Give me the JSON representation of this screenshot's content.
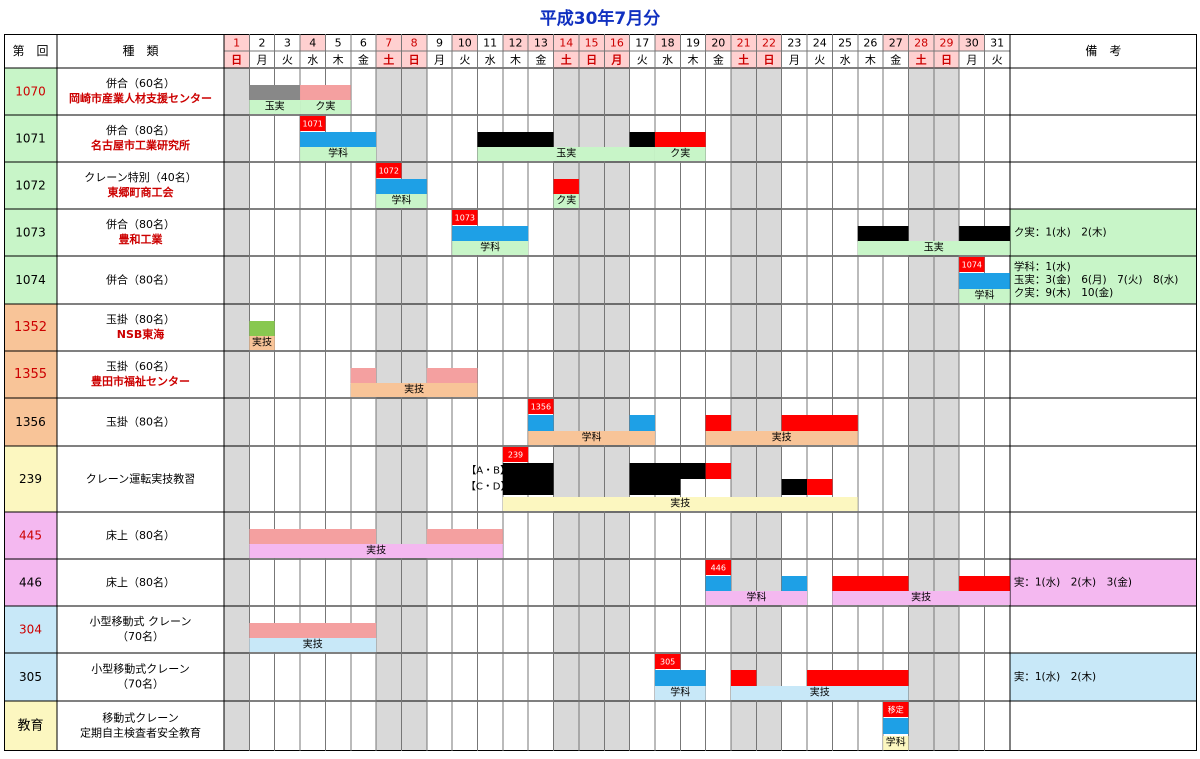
{
  "page_title": "平成30年7月分",
  "header": {
    "col_number": "第　回",
    "col_type": "種　類",
    "col_notes": "備　考"
  },
  "days": [
    {
      "d": "1",
      "w": "日",
      "off": true
    },
    {
      "d": "2",
      "w": "月",
      "off": false
    },
    {
      "d": "3",
      "w": "火",
      "off": false
    },
    {
      "d": "4",
      "w": "水",
      "off": false,
      "pink": true
    },
    {
      "d": "5",
      "w": "木",
      "off": false
    },
    {
      "d": "6",
      "w": "金",
      "off": false
    },
    {
      "d": "7",
      "w": "土",
      "off": true
    },
    {
      "d": "8",
      "w": "日",
      "off": true
    },
    {
      "d": "9",
      "w": "月",
      "off": false
    },
    {
      "d": "10",
      "w": "火",
      "off": false,
      "pink": true
    },
    {
      "d": "11",
      "w": "水",
      "off": false
    },
    {
      "d": "12",
      "w": "木",
      "off": false,
      "pink": true
    },
    {
      "d": "13",
      "w": "金",
      "off": false,
      "pink": true
    },
    {
      "d": "14",
      "w": "土",
      "off": true
    },
    {
      "d": "15",
      "w": "日",
      "off": true
    },
    {
      "d": "16",
      "w": "月",
      "off": true
    },
    {
      "d": "17",
      "w": "火",
      "off": false
    },
    {
      "d": "18",
      "w": "水",
      "off": false,
      "pink": true
    },
    {
      "d": "19",
      "w": "木",
      "off": false
    },
    {
      "d": "20",
      "w": "金",
      "off": false,
      "pink": true
    },
    {
      "d": "21",
      "w": "土",
      "off": true
    },
    {
      "d": "22",
      "w": "日",
      "off": true
    },
    {
      "d": "23",
      "w": "月",
      "off": false
    },
    {
      "d": "24",
      "w": "火",
      "off": false
    },
    {
      "d": "25",
      "w": "水",
      "off": false
    },
    {
      "d": "26",
      "w": "木",
      "off": false
    },
    {
      "d": "27",
      "w": "金",
      "off": false,
      "pink": true
    },
    {
      "d": "28",
      "w": "土",
      "off": true
    },
    {
      "d": "29",
      "w": "日",
      "off": true
    },
    {
      "d": "30",
      "w": "月",
      "off": false,
      "pink": true
    },
    {
      "d": "31",
      "w": "火",
      "off": false
    }
  ],
  "colors": {
    "gray": "#888888",
    "pink": "#f4a0a0",
    "blue": "#1ea0e6",
    "black": "#000000",
    "red": "#ff0000",
    "lgreen": "#c8f5c8",
    "green": "#88c850",
    "peach": "#f8c498",
    "yellow": "#fcf7c0",
    "magenta": "#f4b8f0",
    "lblue": "#c8e8f8",
    "offcol": "#d9d9d9",
    "title": "#1030c0",
    "redtext": "#cc0000"
  },
  "rows": [
    {
      "num": "1070",
      "numColor": "#cc0000",
      "numBg": "#c8f5c8",
      "l1": "併合（60名）",
      "l2": "岡崎市産業人材支援センター",
      "marks": [
        {
          "f": 2,
          "t": 3,
          "c": "gray"
        },
        {
          "f": 4,
          "t": 5,
          "c": "pink"
        }
      ],
      "bars": [
        {
          "f": 2,
          "t": 3,
          "c": "lgreen",
          "label": "玉実"
        },
        {
          "f": 4,
          "t": 5,
          "c": "lgreen",
          "label": "ク実"
        }
      ],
      "notes": []
    },
    {
      "num": "1071",
      "numColor": "#000000",
      "numBg": "#c8f5c8",
      "l1": "併合（80名）",
      "l2": "名古屋市工業研究所",
      "flag": {
        "d": 4,
        "label": "1071"
      },
      "marks": [
        {
          "f": 4,
          "t": 6,
          "c": "blue"
        },
        {
          "f": 11,
          "t": 13,
          "c": "black"
        },
        {
          "f": 17,
          "t": 17,
          "c": "black"
        },
        {
          "f": 18,
          "t": 19,
          "c": "red"
        }
      ],
      "bars": [
        {
          "f": 4,
          "t": 6,
          "c": "lgreen",
          "label": "学科"
        },
        {
          "f": 11,
          "t": 17,
          "c": "lgreen",
          "label": "玉実"
        },
        {
          "f": 18,
          "t": 19,
          "c": "lgreen",
          "label": "ク実"
        }
      ],
      "notes": []
    },
    {
      "num": "1072",
      "numColor": "#000000",
      "numBg": "#c8f5c8",
      "l1": "クレーン特別（40名）",
      "l2": "東郷町商工会",
      "flag": {
        "d": 7,
        "label": "1072"
      },
      "marks": [
        {
          "f": 7,
          "t": 8,
          "c": "blue"
        },
        {
          "f": 14,
          "t": 14,
          "c": "red"
        }
      ],
      "bars": [
        {
          "f": 7,
          "t": 8,
          "c": "lgreen",
          "label": "学科"
        },
        {
          "f": 14,
          "t": 14,
          "c": "lgreen",
          "label": "ク実"
        }
      ],
      "notes": []
    },
    {
      "num": "1073",
      "numColor": "#000000",
      "numBg": "#c8f5c8",
      "l1": "併合（80名）",
      "l2": "豊和工業",
      "flag": {
        "d": 10,
        "label": "1073"
      },
      "marks": [
        {
          "f": 10,
          "t": 12,
          "c": "blue"
        },
        {
          "f": 26,
          "t": 27,
          "c": "black"
        },
        {
          "f": 30,
          "t": 31,
          "c": "black"
        }
      ],
      "bars": [
        {
          "f": 10,
          "t": 12,
          "c": "lgreen",
          "label": "学科"
        },
        {
          "f": 26,
          "t": 31,
          "c": "lgreen",
          "label": "玉実"
        }
      ],
      "notes": [
        "ク実：1(水)　2(木)"
      ],
      "notesBg": "#c8f5c8"
    },
    {
      "num": "1074",
      "numColor": "#000000",
      "numBg": "#c8f5c8",
      "l1": "併合（80名）",
      "l2": "",
      "flag": {
        "d": 30,
        "label": "1074"
      },
      "marks": [
        {
          "f": 30,
          "t": 31,
          "c": "blue"
        }
      ],
      "bars": [
        {
          "f": 30,
          "t": 31,
          "c": "lgreen",
          "label": "学科"
        }
      ],
      "notes": [
        "学科：1(水)",
        "玉実：3(金)　6(月)　7(火)　8(水)",
        "ク実：9(木)　10(金)"
      ],
      "notesBg": "#c8f5c8"
    },
    {
      "num": "1352",
      "numColor": "#cc0000",
      "numBg": "#f8c498",
      "l1": "玉掛（80名）",
      "l2": "NSB東海",
      "marks": [
        {
          "f": 2,
          "t": 2,
          "c": "green"
        }
      ],
      "bars": [
        {
          "f": 2,
          "t": 2,
          "c": "peach",
          "label": "実技"
        }
      ],
      "notes": []
    },
    {
      "num": "1355",
      "numColor": "#cc0000",
      "numBg": "#f8c498",
      "l1": "玉掛（60名）",
      "l2": "豊田市福祉センター",
      "marks": [
        {
          "f": 6,
          "t": 6,
          "c": "pink"
        },
        {
          "f": 9,
          "t": 10,
          "c": "pink"
        }
      ],
      "bars": [
        {
          "f": 6,
          "t": 10,
          "c": "peach",
          "label": "実技"
        }
      ],
      "notes": []
    },
    {
      "num": "1356",
      "numColor": "#000000",
      "numBg": "#f8c498",
      "l1": "玉掛（80名）",
      "l2": "",
      "flag": {
        "d": 13,
        "label": "1356"
      },
      "marks": [
        {
          "f": 13,
          "t": 13,
          "c": "blue"
        },
        {
          "f": 17,
          "t": 17,
          "c": "blue"
        },
        {
          "f": 20,
          "t": 20,
          "c": "red"
        },
        {
          "f": 23,
          "t": 25,
          "c": "red"
        }
      ],
      "bars": [
        {
          "f": 13,
          "t": 17,
          "c": "peach",
          "label": "学科"
        },
        {
          "f": 20,
          "t": 25,
          "c": "peach",
          "label": "実技"
        }
      ],
      "notes": []
    },
    {
      "num": "239",
      "numColor": "#000000",
      "numBg": "#fcf7c0",
      "l1": "クレーン運転実技教習",
      "l2": "",
      "special239": true,
      "flag": {
        "d": 12,
        "label": "239"
      },
      "abLabel": "【A・B】",
      "cdLabel": "【C・D】",
      "ab": [
        {
          "f": 12,
          "t": 13,
          "c": "black"
        },
        {
          "f": 17,
          "t": 19,
          "c": "black"
        },
        {
          "f": 20,
          "t": 20,
          "c": "red"
        }
      ],
      "cd": [
        {
          "f": 12,
          "t": 13,
          "c": "black"
        },
        {
          "f": 17,
          "t": 18,
          "c": "black"
        },
        {
          "f": 23,
          "t": 23,
          "c": "black"
        },
        {
          "f": 24,
          "t": 24,
          "c": "red"
        }
      ],
      "marks": [],
      "bars": [
        {
          "f": 12,
          "t": 25,
          "c": "yellow",
          "label": "実技"
        }
      ],
      "notes": []
    },
    {
      "num": "445",
      "numColor": "#cc0000",
      "numBg": "#f4b8f0",
      "l1": "床上（80名）",
      "l2": "",
      "marks": [
        {
          "f": 2,
          "t": 6,
          "c": "pink"
        },
        {
          "f": 9,
          "t": 11,
          "c": "pink"
        }
      ],
      "bars": [
        {
          "f": 2,
          "t": 11,
          "c": "magenta",
          "label": "実技"
        }
      ],
      "notes": []
    },
    {
      "num": "446",
      "numColor": "#000000",
      "numBg": "#f4b8f0",
      "l1": "床上（80名）",
      "l2": "",
      "flag": {
        "d": 20,
        "label": "446"
      },
      "marks": [
        {
          "f": 20,
          "t": 20,
          "c": "blue"
        },
        {
          "f": 23,
          "t": 23,
          "c": "blue"
        },
        {
          "f": 25,
          "t": 27,
          "c": "red"
        },
        {
          "f": 30,
          "t": 31,
          "c": "red"
        }
      ],
      "bars": [
        {
          "f": 20,
          "t": 23,
          "c": "magenta",
          "label": "学科"
        },
        {
          "f": 25,
          "t": 31,
          "c": "magenta",
          "label": "実技"
        }
      ],
      "notes": [
        "実：1(水)　2(木)　3(金)"
      ],
      "notesBg": "#f4b8f0"
    },
    {
      "num": "304",
      "numColor": "#cc0000",
      "numBg": "#c8e8f8",
      "l1": "小型移動式 クレーン",
      "l2": "（70名）",
      "l2black": true,
      "marks": [
        {
          "f": 2,
          "t": 6,
          "c": "pink"
        }
      ],
      "bars": [
        {
          "f": 2,
          "t": 6,
          "c": "lblue",
          "label": "実技"
        }
      ],
      "notes": []
    },
    {
      "num": "305",
      "numColor": "#000000",
      "numBg": "#c8e8f8",
      "l1": "小型移動式クレーン",
      "l2": "（70名）",
      "l2black": true,
      "flag": {
        "d": 18,
        "label": "305"
      },
      "marks": [
        {
          "f": 18,
          "t": 19,
          "c": "blue"
        },
        {
          "f": 21,
          "t": 21,
          "c": "red"
        },
        {
          "f": 24,
          "t": 27,
          "c": "red"
        }
      ],
      "bars": [
        {
          "f": 18,
          "t": 19,
          "c": "lblue",
          "label": "学科"
        },
        {
          "f": 21,
          "t": 27,
          "c": "lblue",
          "label": "実技"
        }
      ],
      "notes": [
        "実：1(水)　2(木)"
      ],
      "notesBg": "#c8e8f8"
    },
    {
      "num": "教育",
      "numColor": "#000000",
      "numBg": "#fcf7c0",
      "l1": "移動式クレーン",
      "l2": "定期自主検査者安全教育",
      "l2black": true,
      "flag": {
        "d": 27,
        "label": "移定"
      },
      "marks": [
        {
          "f": 27,
          "t": 27,
          "c": "blue"
        }
      ],
      "bars": [
        {
          "f": 27,
          "t": 27,
          "c": "yellow",
          "label": "学科"
        }
      ],
      "notes": []
    }
  ]
}
